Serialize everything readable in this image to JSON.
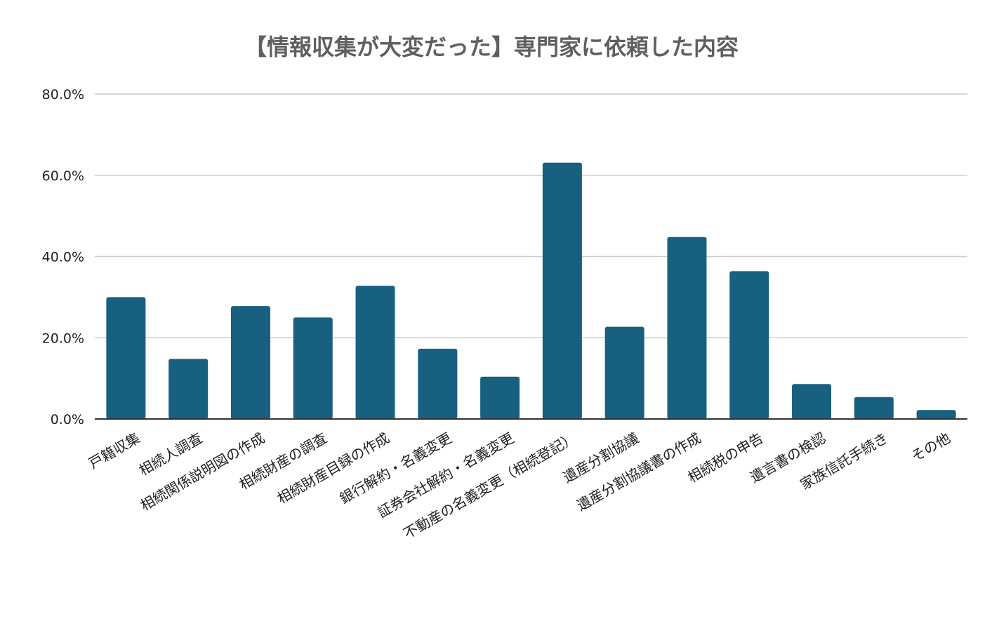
{
  "chart_data": {
    "type": "bar",
    "title": "【情報収集が大変だった】専門家に依頼した内容",
    "xlabel": "",
    "ylabel": "",
    "ylim": [
      0,
      80
    ],
    "yticks": [
      "0.0%",
      "20.0%",
      "40.0%",
      "60.0%",
      "80.0%"
    ],
    "grid": true,
    "bar_color": "#17607f",
    "categories": [
      "戸籍収集",
      "相続人調査",
      "相続関係説明図の作成",
      "相続財産の調査",
      "相続財産目録の作成",
      "銀行解約・名義変更",
      "証券会社解約・名義変更",
      "不動産の名義変更（相続登記）",
      "遺産分割協議",
      "遺産分割協議書の作成",
      "相続税の申告",
      "遺言書の検認",
      "家族信託手続き",
      "その他"
    ],
    "values": [
      30.0,
      14.8,
      27.8,
      25.0,
      32.8,
      17.3,
      10.4,
      63.1,
      22.7,
      44.8,
      36.4,
      8.6,
      5.4,
      2.2
    ]
  }
}
